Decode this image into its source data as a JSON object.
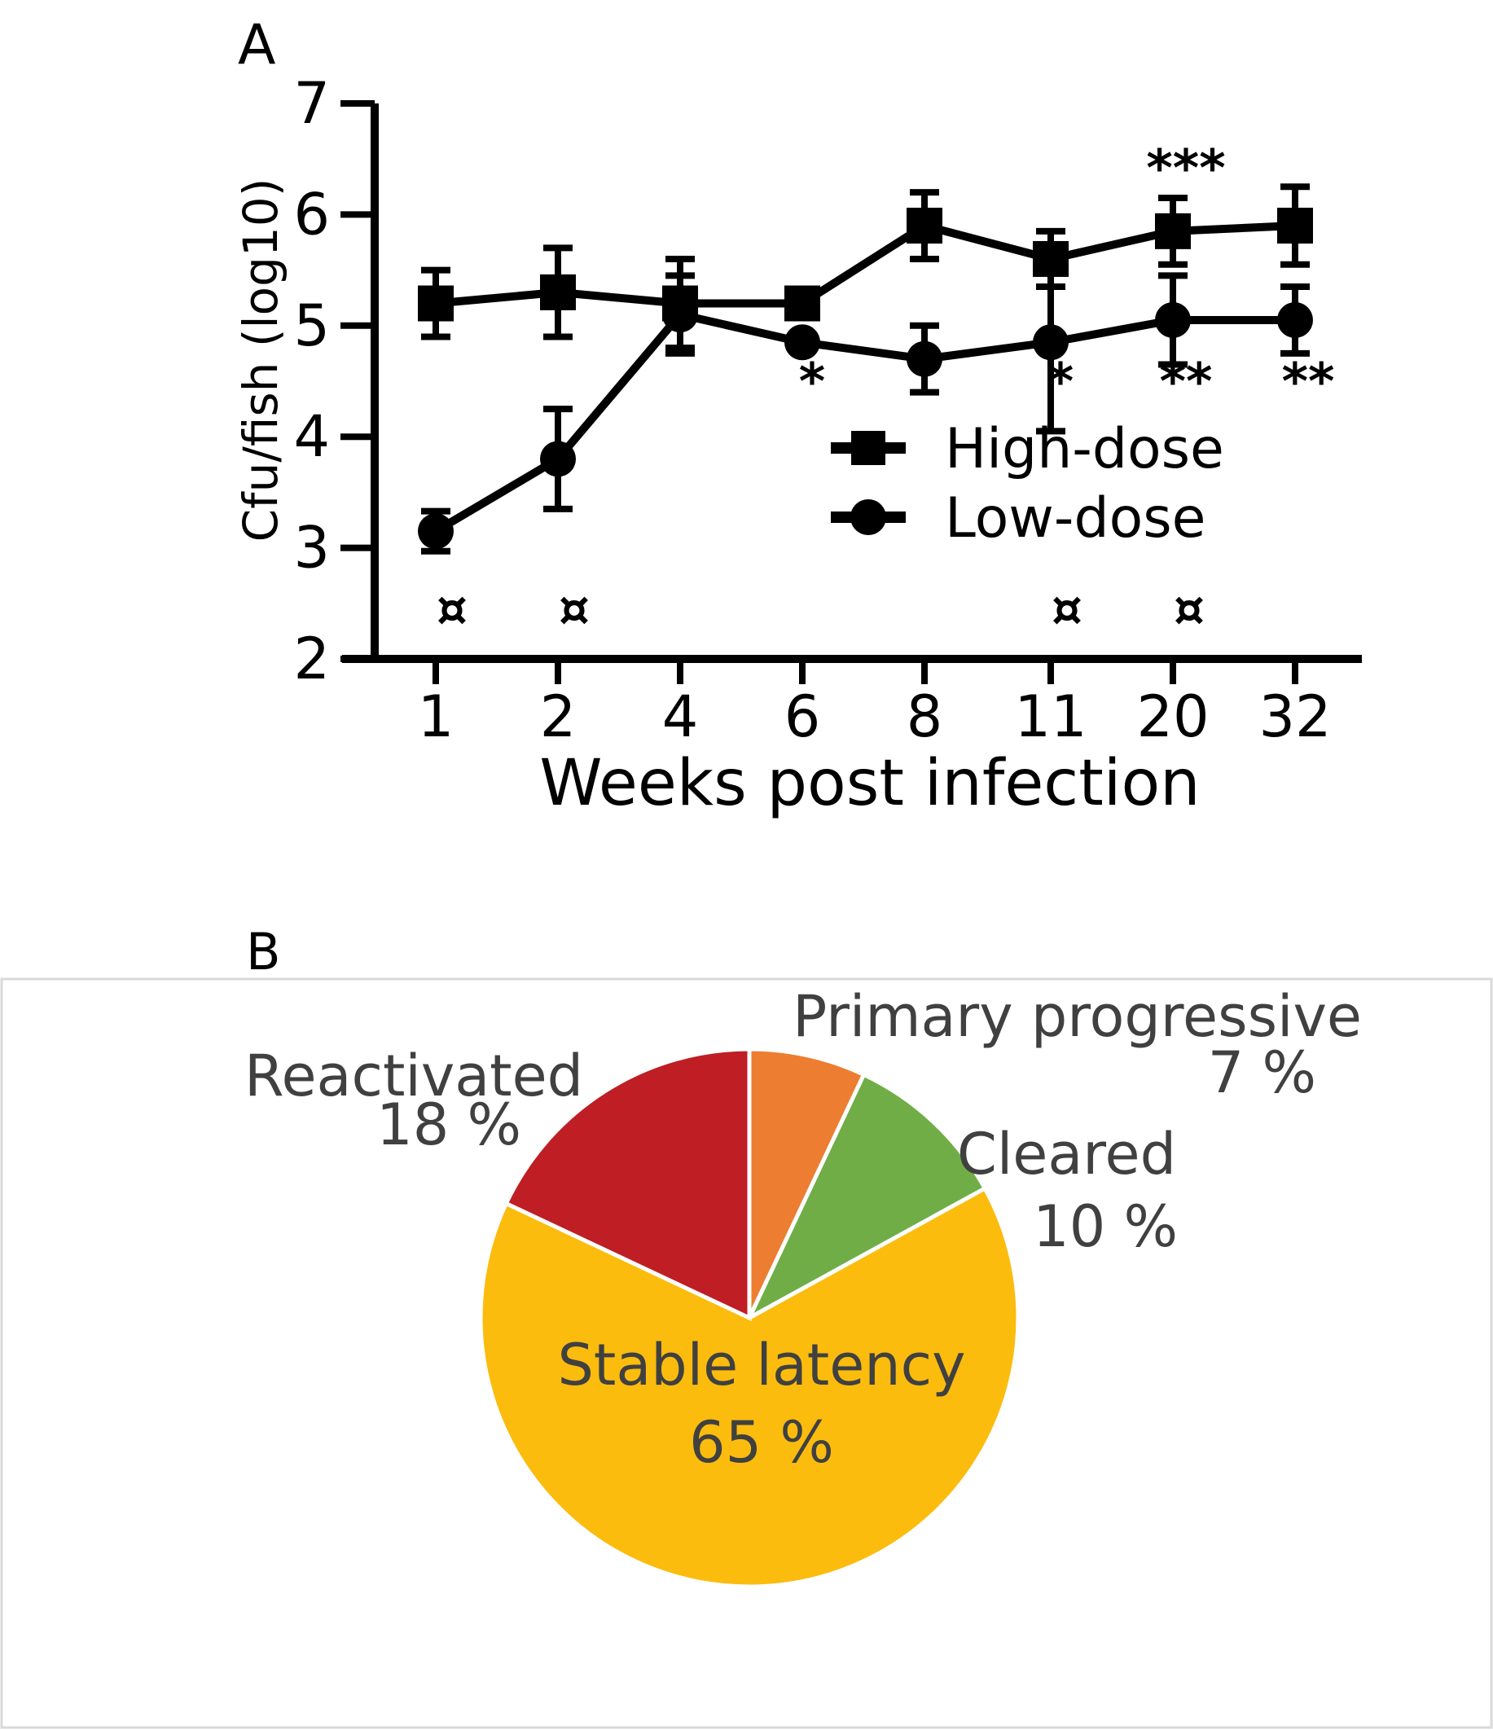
{
  "chart_data": [
    {
      "panel": "A",
      "type": "line",
      "xlabel": "Weeks post infection",
      "ylabel": "Cfu/fish (log10)",
      "ylim": [
        2,
        7
      ],
      "yticks": [
        "2",
        "3",
        "4",
        "5",
        "6",
        "7"
      ],
      "categories": [
        "1",
        "2",
        "4",
        "6",
        "8",
        "11",
        "20",
        "32"
      ],
      "series": [
        {
          "name": "High-dose",
          "marker": "square",
          "values": [
            5.2,
            5.3,
            5.2,
            5.2,
            5.9,
            5.6,
            5.85,
            5.9
          ],
          "error": [
            0.3,
            0.4,
            0.4,
            0.1,
            0.3,
            0.25,
            0.3,
            0.35
          ]
        },
        {
          "name": "Low-dose",
          "marker": "circle",
          "values": [
            3.15,
            3.8,
            5.1,
            4.85,
            4.7,
            4.85,
            5.05,
            5.05
          ],
          "error": [
            0.18,
            0.45,
            0.35,
            0.0,
            0.3,
            0.8,
            0.4,
            0.3
          ]
        }
      ],
      "significance": [
        {
          "category": "6",
          "label": "*",
          "level": "below"
        },
        {
          "category": "11",
          "label": "*",
          "level": "below"
        },
        {
          "category": "20",
          "label": "**",
          "level": "below"
        },
        {
          "category": "32",
          "label": "**",
          "level": "below"
        },
        {
          "category": "20",
          "label": "***",
          "level": "above"
        }
      ],
      "currency_marks": {
        "label": "¤",
        "categories": [
          "1",
          "2",
          "11",
          "20"
        ]
      },
      "legend": {
        "position": "center-right"
      }
    },
    {
      "panel": "B",
      "type": "pie",
      "slices": [
        {
          "label": "Primary progressive",
          "value": 7,
          "pct_text": "7 %",
          "color": "#ED7D31"
        },
        {
          "label": "Cleared",
          "value": 10,
          "pct_text": "10 %",
          "color": "#70AD47"
        },
        {
          "label": "Stable latency",
          "value": 65,
          "pct_text": "65 %",
          "color": "#FBBC0E"
        },
        {
          "label": "Reactivated",
          "value": 18,
          "pct_text": "18 %",
          "color": "#BE1E24"
        }
      ]
    }
  ]
}
